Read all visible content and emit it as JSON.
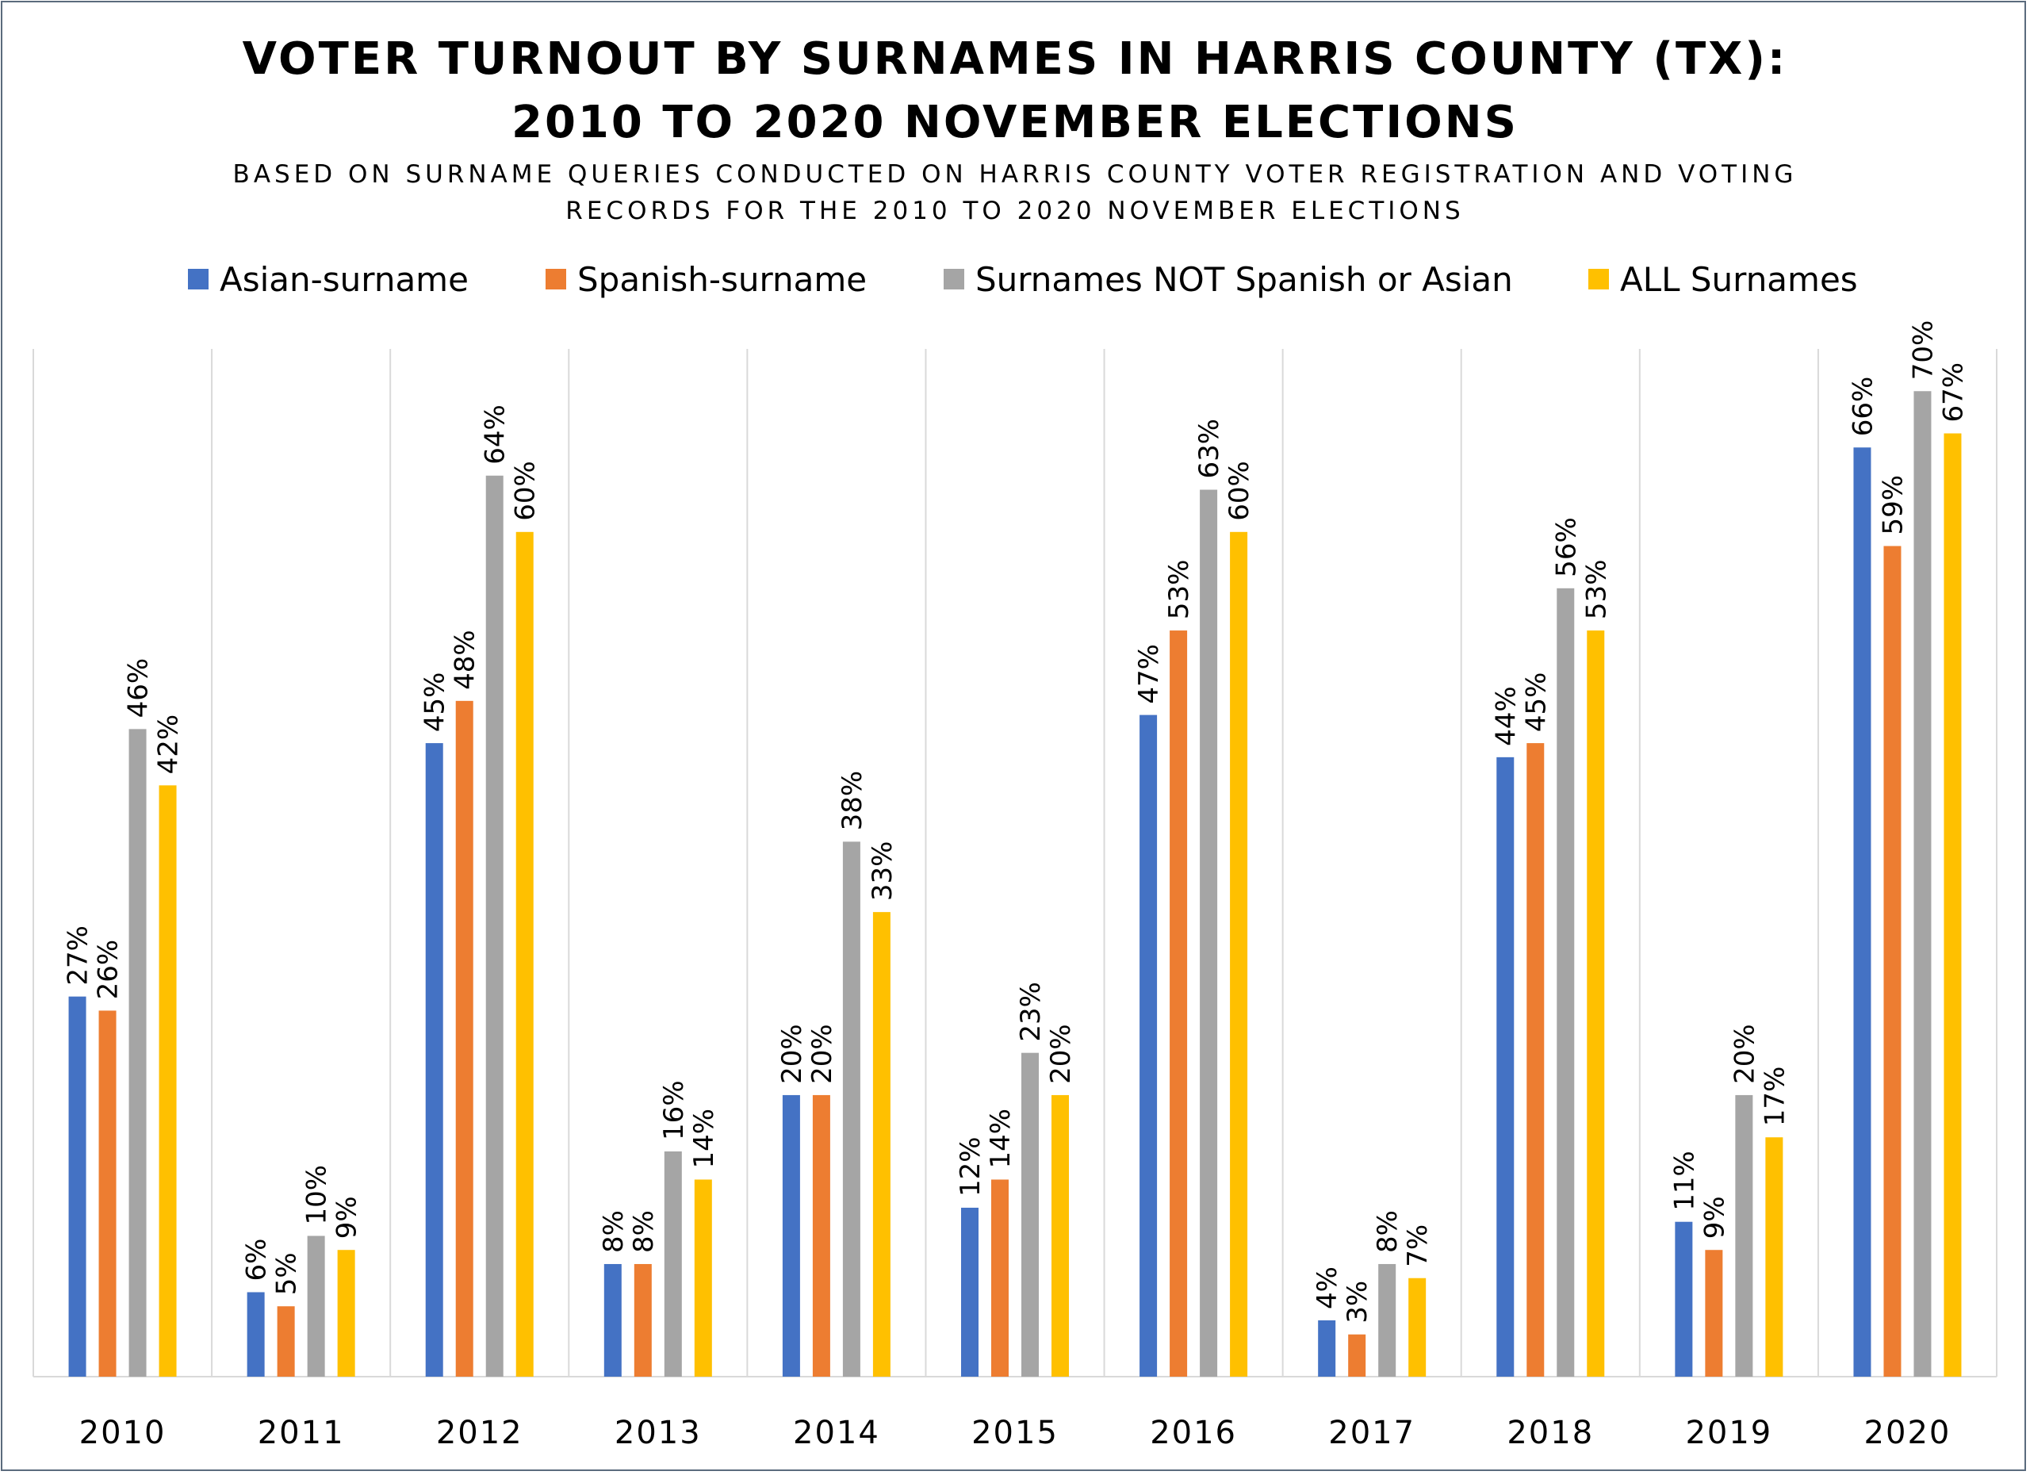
{
  "chart_data": {
    "type": "bar",
    "title_line1": "VOTER TURNOUT BY SURNAMES IN HARRIS COUNTY (TX):",
    "title_line2": "2010 TO 2020 NOVEMBER ELECTIONS",
    "subtitle_line1": "BASED ON SURNAME QUERIES CONDUCTED ON HARRIS COUNTY VOTER REGISTRATION AND VOTING",
    "subtitle_line2": "RECORDS FOR THE 2010 TO 2020 NOVEMBER ELECTIONS",
    "categories": [
      "2010",
      "2011",
      "2012",
      "2013",
      "2014",
      "2015",
      "2016",
      "2017",
      "2018",
      "2019",
      "2020"
    ],
    "series": [
      {
        "name": "Asian-surname",
        "color": "#4472c4",
        "values": [
          27,
          6,
          45,
          8,
          20,
          12,
          47,
          4,
          44,
          11,
          66
        ],
        "labels": [
          "27%",
          "6%",
          "45%",
          "8%",
          "20%",
          "12%",
          "47%",
          "4%",
          "44%",
          "11%",
          "66%"
        ]
      },
      {
        "name": "Spanish-surname",
        "color": "#ed7d31",
        "values": [
          26,
          5,
          48,
          8,
          20,
          14,
          53,
          3,
          45,
          9,
          59
        ],
        "labels": [
          "26%",
          "5%",
          "48%",
          "8%",
          "20%",
          "14%",
          "53%",
          "3%",
          "45%",
          "9%",
          "59%"
        ]
      },
      {
        "name": "Surnames NOT Spanish or Asian",
        "color": "#a5a5a5",
        "values": [
          46,
          10,
          64,
          16,
          38,
          23,
          63,
          8,
          56,
          20,
          70
        ],
        "labels": [
          "46%",
          "10%",
          "64%",
          "16%",
          "38%",
          "23%",
          "63%",
          "8%",
          "56%",
          "20%",
          "70%"
        ]
      },
      {
        "name": "ALL Surnames",
        "color": "#ffc000",
        "values": [
          42,
          9,
          60,
          14,
          33,
          20,
          60,
          7,
          53,
          17,
          67
        ],
        "labels": [
          "42%",
          "9%",
          "60%",
          "14%",
          "33%",
          "20%",
          "60%",
          "7%",
          "53%",
          "17%",
          "67%"
        ]
      }
    ],
    "ylim": [
      0,
      73
    ],
    "legend_position": "top",
    "grid": "vertical category separators"
  }
}
